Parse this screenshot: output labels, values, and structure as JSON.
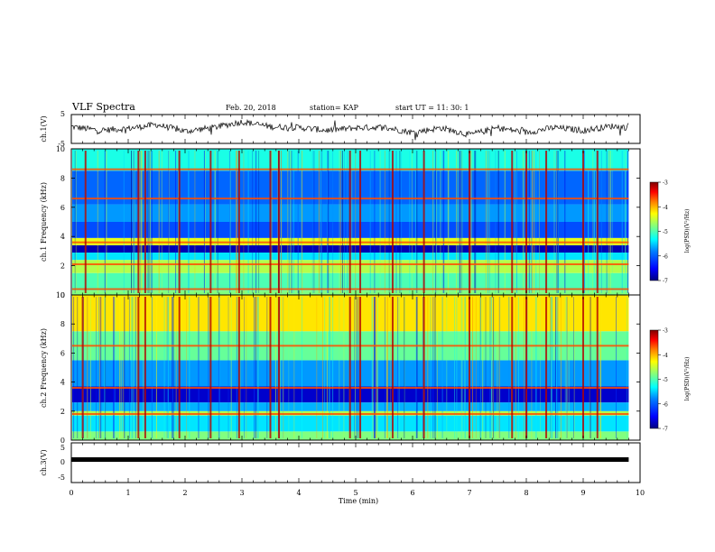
{
  "header": {
    "title": "VLF Spectra",
    "date": "Feb. 20, 2018",
    "station": "station= KAP",
    "start": "start  UT  =   11: 30: 1"
  },
  "chart_data": [
    {
      "type": "line",
      "panel": "ch1-waveform",
      "ylabel": "ch.1(V)",
      "ylim": [
        -5,
        5
      ],
      "yticks": [
        "5",
        "-5"
      ],
      "x_minutes": [
        0,
        0.5,
        1,
        1.5,
        2,
        2.5,
        3,
        3.5,
        4,
        4.5,
        5,
        5.5,
        6,
        6.5,
        7,
        7.5,
        8,
        8.5,
        9,
        9.5,
        9.8
      ],
      "y": [
        0.8,
        -0.5,
        0.2,
        1.5,
        -0.8,
        0.5,
        2.5,
        0.8,
        0.5,
        -0.5,
        0.4,
        0.6,
        -1.2,
        0.4,
        -2,
        0.4,
        -1.2,
        0.5,
        -0.5,
        1,
        0.5
      ]
    },
    {
      "type": "heatmap",
      "panel": "ch1-spectrogram",
      "ylabel": "ch.1 Frequency  (kHz)",
      "ylim": [
        0,
        10
      ],
      "yticks": [
        "10",
        "8",
        "6",
        "4",
        "2",
        "0"
      ],
      "colorbar": {
        "label": "log(PSD)(V²/Hz)",
        "range": [
          -7,
          -3
        ],
        "ticks": [
          "-3",
          "-4",
          "-5",
          "-6",
          "-7"
        ]
      },
      "background_bands_khz": [
        {
          "from": 0.0,
          "to": 0.3,
          "level": -5.0
        },
        {
          "from": 0.3,
          "to": 1.5,
          "level": -5.2
        },
        {
          "from": 1.5,
          "to": 2.4,
          "level": -4.8
        },
        {
          "from": 2.4,
          "to": 2.9,
          "level": -5.6
        },
        {
          "from": 2.9,
          "to": 3.4,
          "level": -6.8
        },
        {
          "from": 3.4,
          "to": 3.9,
          "level": -4.6
        },
        {
          "from": 3.9,
          "to": 5.0,
          "level": -6.2
        },
        {
          "from": 5.0,
          "to": 6.2,
          "level": -5.9
        },
        {
          "from": 6.2,
          "to": 8.5,
          "level": -6.1
        },
        {
          "from": 8.5,
          "to": 10.0,
          "level": -5.4
        }
      ],
      "tone_lines_khz": [
        3.6,
        2.1,
        0.4,
        6.6,
        8.6
      ],
      "sferic_times_min": [
        0.25,
        1.18,
        1.3,
        1.9,
        2.45,
        2.95,
        3.5,
        3.65,
        4.9,
        5.08,
        5.65,
        6.2,
        7.0,
        7.75,
        8.0,
        8.35,
        9.0,
        9.25
      ]
    },
    {
      "type": "heatmap",
      "panel": "ch2-spectrogram",
      "ylabel": "ch.2 Frequency  (kHz)",
      "ylim": [
        0,
        10
      ],
      "yticks": [
        "10",
        "8",
        "6",
        "4",
        "2",
        "0"
      ],
      "colorbar": {
        "label": "log(PSD)(V²/Hz)",
        "range": [
          -7,
          -3
        ],
        "ticks": [
          "-3",
          "-4",
          "-5",
          "-6",
          "-7"
        ]
      },
      "background_bands_khz": [
        {
          "from": 0.0,
          "to": 0.6,
          "level": -5.0
        },
        {
          "from": 0.6,
          "to": 1.7,
          "level": -5.6
        },
        {
          "from": 1.7,
          "to": 2.0,
          "level": -4.8
        },
        {
          "from": 2.0,
          "to": 2.6,
          "level": -5.8
        },
        {
          "from": 2.6,
          "to": 3.7,
          "level": -6.7
        },
        {
          "from": 3.7,
          "to": 5.5,
          "level": -5.9
        },
        {
          "from": 5.5,
          "to": 7.5,
          "level": -5.1
        },
        {
          "from": 7.5,
          "to": 10.0,
          "level": -4.4
        }
      ],
      "tone_lines_khz": [
        3.6,
        1.8,
        6.5
      ],
      "sferic_times_min": [
        0.2,
        1.18,
        1.3,
        1.9,
        2.45,
        2.95,
        3.5,
        3.65,
        4.9,
        5.08,
        5.65,
        6.2,
        7.0,
        7.75,
        8.0,
        8.35,
        9.0,
        9.25
      ]
    },
    {
      "type": "line",
      "panel": "ch3-waveform",
      "ylabel": "ch.3(V)",
      "ylim": [
        -5,
        5
      ],
      "yticks": [
        "5",
        "0",
        "-5"
      ],
      "x_minutes": [
        0,
        9.8
      ],
      "y": [
        0.8,
        0.8
      ]
    }
  ],
  "x_axis": {
    "label": "Time  (min)",
    "ticks": [
      "0",
      "1",
      "2",
      "3",
      "4",
      "5",
      "6",
      "7",
      "8",
      "9",
      "10"
    ]
  },
  "colors": {
    "axes": "#000000",
    "trace": "#000000",
    "colormap": [
      "#000080",
      "#0000ff",
      "#0080ff",
      "#00ffff",
      "#80ff80",
      "#ffff00",
      "#ff8000",
      "#ff0000",
      "#800000"
    ]
  }
}
